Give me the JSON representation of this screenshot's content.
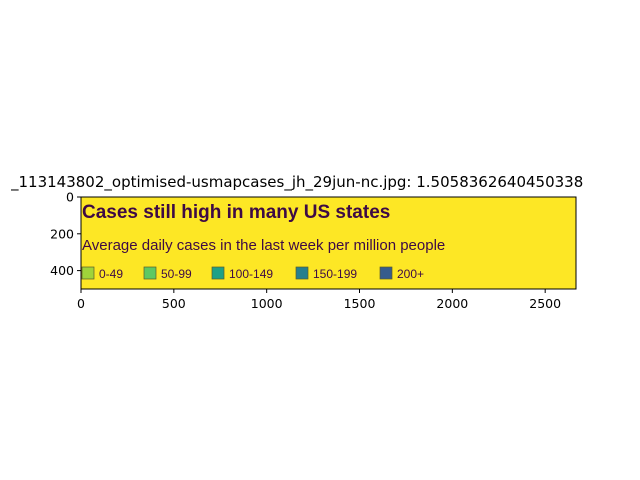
{
  "title": "_113143802_optimised-usmapcases_jh_29jun-nc.jpg: 1.5058362640450338",
  "colors": {
    "background": "#fde725",
    "text": "#3d0a45",
    "legend_border": "#5b5b2a"
  },
  "image_content": {
    "heading": "Cases still high in many US states",
    "subheading": "Average daily cases in the last week per million people",
    "legend": [
      {
        "label": "0-49",
        "color": "#9fd33a"
      },
      {
        "label": "50-99",
        "color": "#5ec962"
      },
      {
        "label": "100-149",
        "color": "#1fa187"
      },
      {
        "label": "150-199",
        "color": "#277f8e"
      },
      {
        "label": "200+",
        "color": "#365c8d"
      }
    ]
  },
  "chart_data": {
    "type": "heatmap",
    "title": "_113143802_optimised-usmapcases_jh_29jun-nc.jpg: 1.5058362640450338",
    "xlabel": "",
    "ylabel": "",
    "xlim": [
      0,
      2666
    ],
    "ylim": [
      500,
      0
    ],
    "xticks": [
      0,
      500,
      1000,
      1500,
      2000,
      2500
    ],
    "yticks": [
      0,
      200,
      400
    ],
    "grid": false
  }
}
